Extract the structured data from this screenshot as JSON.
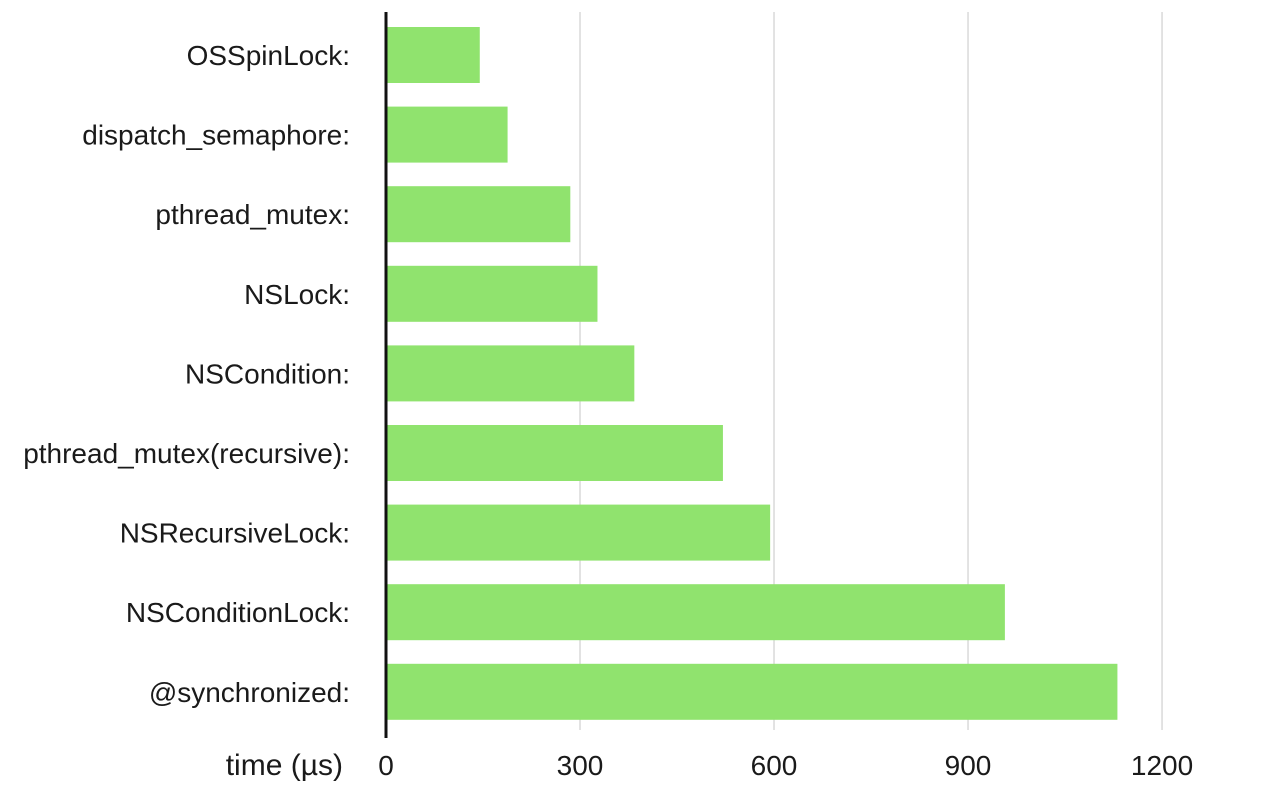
{
  "chart_data": {
    "type": "bar",
    "orientation": "horizontal",
    "categories": [
      "OSSpinLock:",
      "dispatch_semaphore:",
      "pthread_mutex:",
      "NSLock:",
      "NSCondition:",
      "pthread_mutex(recursive):",
      "NSRecursiveLock:",
      "NSConditionLock:",
      "@synchronized:"
    ],
    "values": [
      145,
      188,
      285,
      327,
      384,
      521,
      594,
      957,
      1131
    ],
    "title": "",
    "xlabel": "time (µs)",
    "ylabel": "",
    "xlim": [
      0,
      1350
    ],
    "xticks": [
      0,
      300,
      600,
      900,
      1200
    ],
    "xtick_labels": [
      "0",
      "300",
      "600",
      "900",
      "1200"
    ],
    "grid": "vertical",
    "bar_color": "#90e36e",
    "axis_color": "#111111",
    "grid_color": "#d9d9d9"
  }
}
